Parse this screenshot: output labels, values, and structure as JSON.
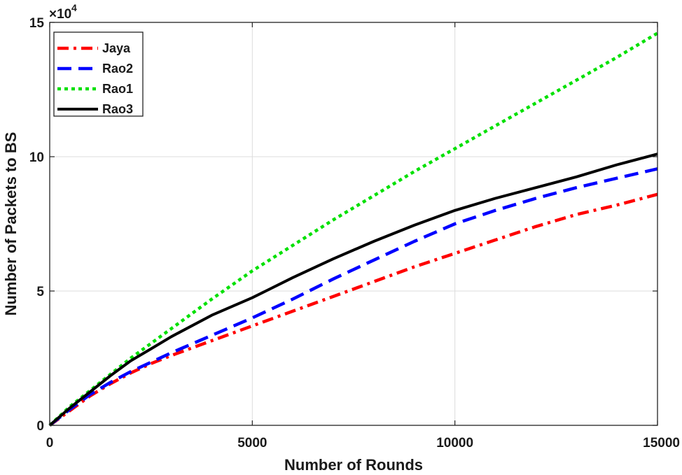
{
  "chart_data": {
    "type": "line",
    "title": "",
    "xlabel": "Number of Rounds",
    "ylabel": "Number of Packets to BS",
    "xlim": [
      0,
      15000
    ],
    "ylim": [
      0,
      150000
    ],
    "x_ticks": [
      0,
      5000,
      10000,
      15000
    ],
    "x_tick_labels": [
      "0",
      "5000",
      "10000",
      "15000"
    ],
    "y_ticks": [
      0,
      50000,
      100000,
      150000
    ],
    "y_tick_labels": [
      "0",
      "5",
      "10",
      "15"
    ],
    "y_multiplier": {
      "base": "×10",
      "exponent": "4"
    },
    "grid": true,
    "legend_position": "top-left",
    "series": [
      {
        "name": "Jaya",
        "color": "#ff0000",
        "style": "dashdot",
        "x": [
          0,
          500,
          1000,
          1500,
          2000,
          2500,
          3000,
          4000,
          5000,
          6000,
          7000,
          8000,
          9000,
          10000,
          11000,
          12000,
          13000,
          14000,
          15000
        ],
        "y": [
          0,
          5500,
          11000,
          15500,
          19500,
          23000,
          26000,
          31500,
          37000,
          42500,
          48000,
          53500,
          59000,
          64000,
          69000,
          74000,
          78500,
          82000,
          86000
        ]
      },
      {
        "name": "Rao2",
        "color": "#0000ff",
        "style": "dashed",
        "x": [
          0,
          500,
          1000,
          1500,
          2000,
          2500,
          3000,
          4000,
          5000,
          6000,
          7000,
          8000,
          9000,
          10000,
          11000,
          12000,
          13000,
          14000,
          15000
        ],
        "y": [
          0,
          6000,
          11500,
          16000,
          20000,
          23500,
          27000,
          33500,
          40000,
          47000,
          54500,
          61500,
          68500,
          75000,
          80000,
          84500,
          88500,
          92000,
          95500
        ]
      },
      {
        "name": "Rao1",
        "color": "#00e000",
        "style": "dotted",
        "x": [
          0,
          500,
          1000,
          1500,
          2000,
          2500,
          3000,
          4000,
          5000,
          6000,
          7000,
          8000,
          9000,
          10000,
          11000,
          12000,
          13000,
          14000,
          15000
        ],
        "y": [
          0,
          7000,
          13000,
          19000,
          25000,
          30500,
          36000,
          47000,
          57500,
          67000,
          76500,
          85500,
          94500,
          103000,
          111500,
          120000,
          128500,
          137000,
          146000
        ]
      },
      {
        "name": "Rao3",
        "color": "#000000",
        "style": "solid",
        "x": [
          0,
          500,
          1000,
          1500,
          2000,
          2500,
          3000,
          4000,
          5000,
          6000,
          7000,
          8000,
          9000,
          10000,
          11000,
          12000,
          13000,
          14000,
          15000
        ],
        "y": [
          0,
          6500,
          12500,
          18500,
          24000,
          28500,
          33000,
          41000,
          47500,
          55000,
          62000,
          68500,
          74500,
          80000,
          84500,
          88500,
          92500,
          97000,
          101000
        ]
      }
    ]
  }
}
